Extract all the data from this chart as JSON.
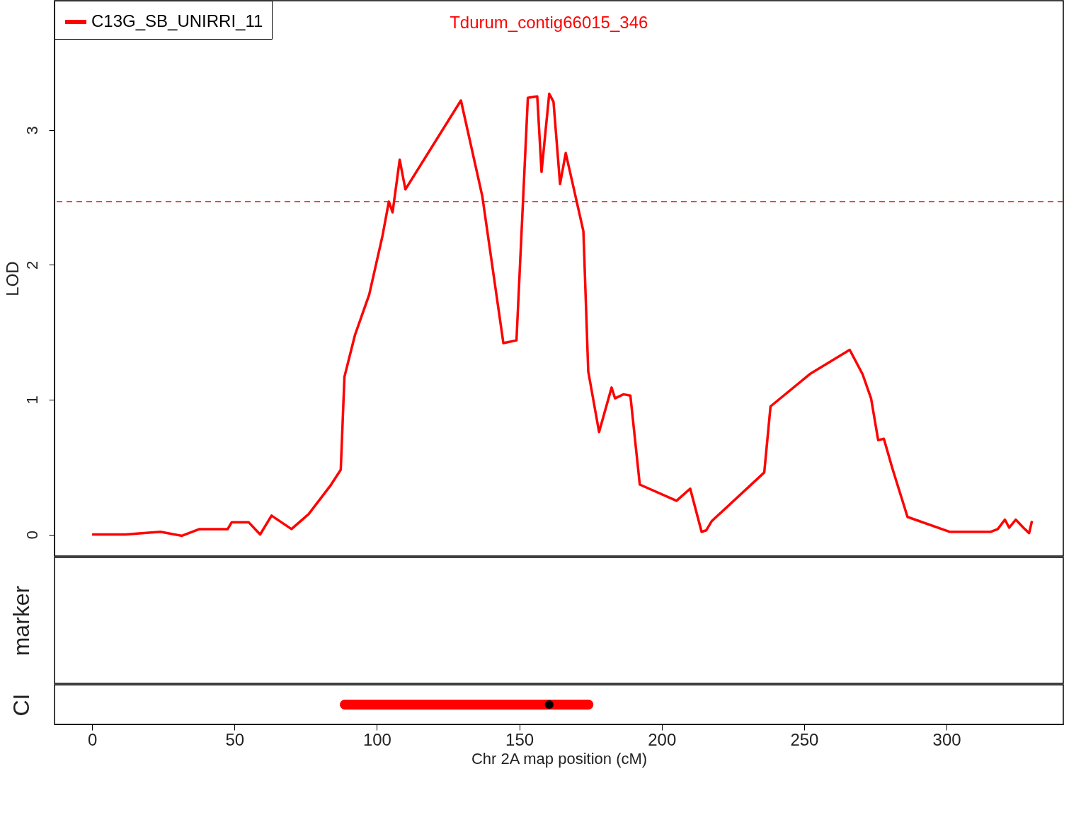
{
  "chart_data": [
    {
      "type": "line",
      "ylabel": "LOD",
      "legend": "top left",
      "tick_labels": "y",
      "marker": "none",
      "line_style": "solid",
      "xlim": [
        -13.2,
        341
      ],
      "ylim": [
        -0.16,
        3.96
      ],
      "yticks": [
        0,
        1,
        2,
        3
      ],
      "annotations": [
        "Tdurum_contig66015_346"
      ],
      "ref_lines": [
        {
          "axis": "y",
          "value": 2.47,
          "color": "#ff0000",
          "line_style": "dashed"
        }
      ],
      "series": [
        {
          "name": "C13G_SB_UNIRRI_11",
          "color": "#ff0000",
          "x": [
            0,
            11.7,
            24,
            31.5,
            37.7,
            47.6,
            49,
            55,
            59,
            63,
            70,
            76,
            83.6,
            87.3,
            88.6,
            92.3,
            97.3,
            102,
            104.2,
            105.5,
            108,
            110,
            129.5,
            137,
            144.4,
            149,
            153,
            156.3,
            157.8,
            160.5,
            162,
            164.3,
            166.3,
            172.5,
            174.2,
            178,
            182.4,
            183.6,
            186.6,
            189,
            192.3,
            205.2,
            210,
            214,
            215.6,
            217.6,
            236,
            238.2,
            252,
            266,
            270.5,
            273.5,
            276,
            278,
            281,
            286.3,
            301,
            315.6,
            318,
            320.5,
            322,
            324.3,
            327,
            329,
            330
          ],
          "values": [
            0,
            0,
            0.02,
            -0.01,
            0.04,
            0.04,
            0.09,
            0.09,
            0,
            0.14,
            0.04,
            0.15,
            0.36,
            0.48,
            1.17,
            1.48,
            1.78,
            2.22,
            2.47,
            2.39,
            2.78,
            2.56,
            3.22,
            2.51,
            1.42,
            1.44,
            3.24,
            3.25,
            2.69,
            3.27,
            3.21,
            2.6,
            2.83,
            2.25,
            1.21,
            0.76,
            1.09,
            1.01,
            1.04,
            1.03,
            0.37,
            0.25,
            0.34,
            0.02,
            0.03,
            0.1,
            0.46,
            0.95,
            1.19,
            1.37,
            1.19,
            1.01,
            0.7,
            0.71,
            0.49,
            0.13,
            0.02,
            0.02,
            0.04,
            0.11,
            0.05,
            0.11,
            0.05,
            0.01,
            0.1
          ]
        }
      ]
    },
    {
      "type": "other",
      "ylabel": "marker"
    },
    {
      "type": "bar",
      "orientation": "horizontal",
      "ylabel": "CI",
      "xlabel": "Chr 2A map position (cM)",
      "xlim": [
        -13.2,
        341
      ],
      "xticks": [
        0,
        50,
        100,
        150,
        200,
        250,
        300
      ],
      "categories": [
        null
      ],
      "series": [
        {
          "type": "bar",
          "color": "#ff0000",
          "base": [
            87
          ],
          "values": [
            89
          ]
        }
      ]
    }
  ]
}
